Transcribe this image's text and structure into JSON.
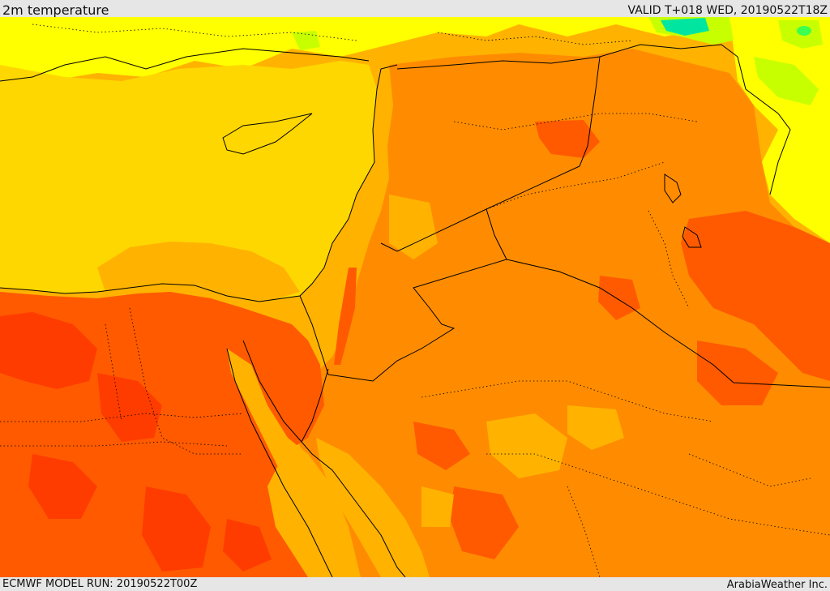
{
  "header": {
    "field_title": "2m temperature",
    "valid_time": "VALID T+018 WED, 20190522T18Z"
  },
  "footer": {
    "model_run": "ECMWF MODEL RUN: 20190522T00Z",
    "credit": "ArabiaWeather Inc."
  },
  "colors": {
    "sea_yellow": "#ffd700",
    "bright_yellow": "#ffff00",
    "light_orange": "#ffb300",
    "orange": "#ff8c00",
    "dark_orange": "#ff5a00",
    "red_orange": "#ff3c00",
    "yellow_green": "#c8ff00",
    "green": "#3cff50",
    "cyan_green": "#00e6a0",
    "border": "#000000"
  }
}
